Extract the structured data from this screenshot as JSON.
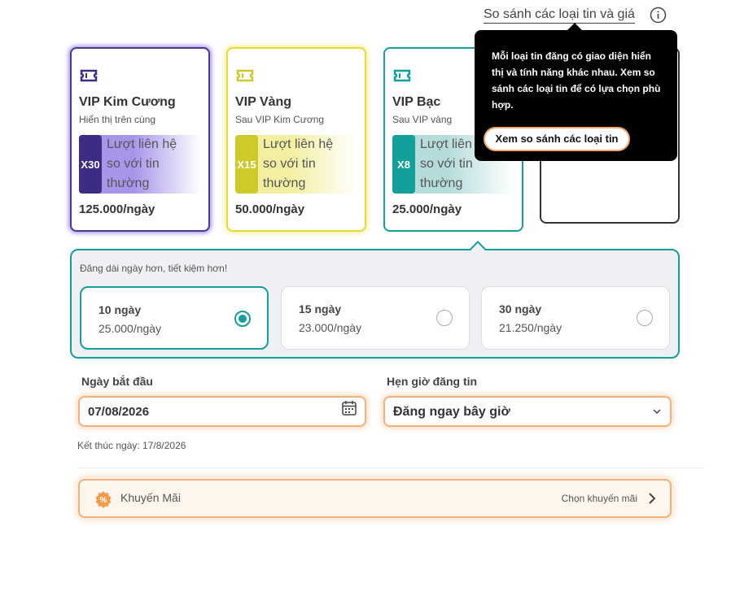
{
  "compare_link": "So sánh các loại tin và giá",
  "tooltip": {
    "text": "Mỗi loại tin đăng có giao diện hiển thị và tính năng khác nhau. Xem so sánh các loại tin để có lựa chọn phù hợp.",
    "button": "Xem so sánh các loại tin"
  },
  "listing_types": [
    {
      "name": "VIP Kim Cương",
      "subtitle": "Hiển thị trên cùng",
      "multiplier": "X30",
      "boost": "Lượt liên hệ so với tin thường",
      "price": "125.000/ngày",
      "color": "#4a3a8e",
      "badge_color": "#3d2c84",
      "glow_color": "#a895ea"
    },
    {
      "name": "VIP Vàng",
      "subtitle": "Sau VIP Kim Cương",
      "multiplier": "X15",
      "boost": "Lượt liên hệ so với tin thường",
      "price": "50.000/ngày",
      "color": "#e6dc35",
      "badge_color": "#cccb2a",
      "glow_color": "#f3efa0"
    },
    {
      "name": "VIP Bạc",
      "subtitle": "Sau VIP vàng",
      "multiplier": "X8",
      "boost": "Lượt liên hệ so với tin thường",
      "price": "25.000/ngày",
      "color": "#159f9b",
      "badge_color": "#13a09b",
      "glow_color": "#b5dcdb",
      "selected": true
    }
  ],
  "duration": {
    "hint": "Đăng dài ngày hơn, tiết kiệm hơn!",
    "options": [
      {
        "days": "10 ngày",
        "price": "25.000/ngày",
        "selected": true
      },
      {
        "days": "15 ngày",
        "price": "23.000/ngày"
      },
      {
        "days": "30 ngày",
        "price": "21.250/ngày"
      }
    ]
  },
  "start_date": {
    "label": "Ngày bắt đầu",
    "value": "07/08/2026"
  },
  "schedule": {
    "label": "Hẹn giờ đăng tin",
    "value": "Đăng ngay bây giờ"
  },
  "end_date": "Kết thúc ngày: 17/8/2026",
  "promotion": {
    "label": "Khuyến Mãi",
    "action": "Chọn khuyến mãi"
  }
}
